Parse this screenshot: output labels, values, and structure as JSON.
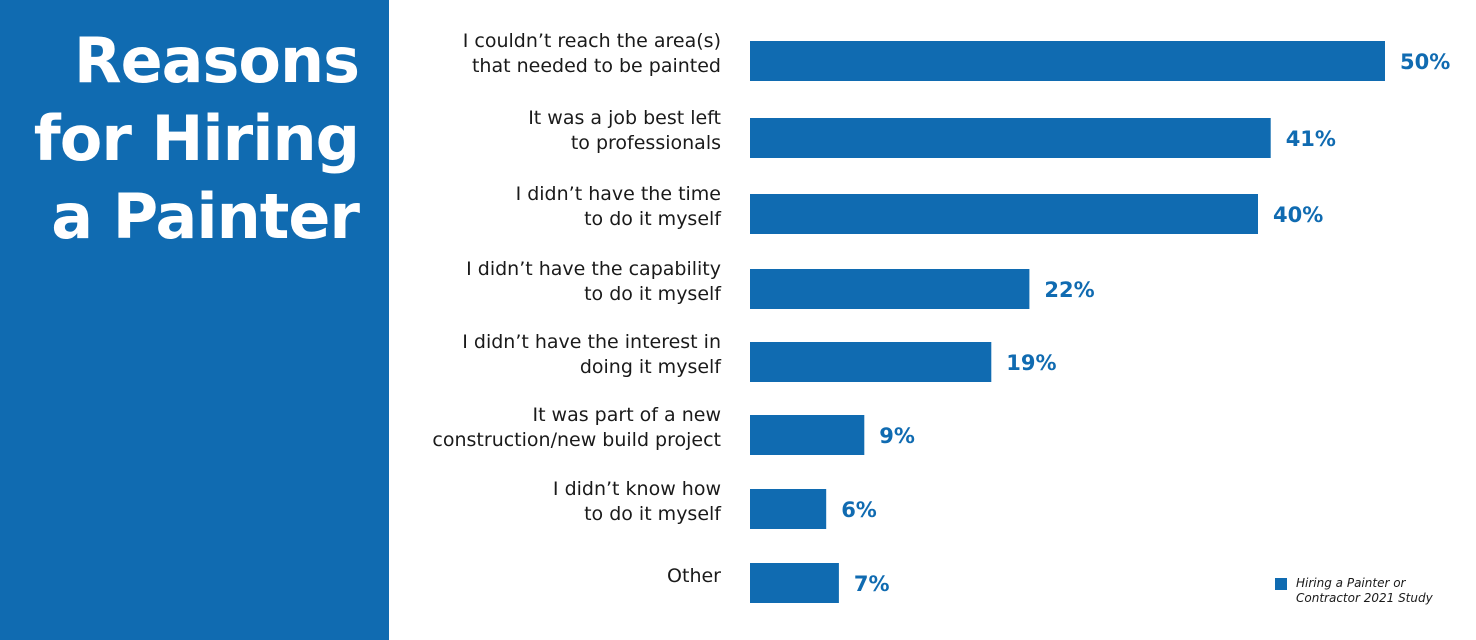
{
  "title_lines": [
    "Reasons",
    "for Hiring",
    "a Painter"
  ],
  "colors": {
    "panel": "#106bb1",
    "bar": "#106bb1",
    "value_text": "#106bb1"
  },
  "legend": {
    "lines": [
      "Hiring a Painter or",
      "Contractor 2021 Study"
    ]
  },
  "chart_data": {
    "type": "bar",
    "orientation": "horizontal",
    "categories": [
      [
        "I couldn’t reach the area(s)",
        "that needed to be painted"
      ],
      [
        "It was a job best left",
        "to professionals"
      ],
      [
        "I didn’t have the time",
        "to do it myself"
      ],
      [
        "I didn’t have the capability",
        "to do it myself"
      ],
      [
        "I didn’t have the interest in",
        "doing it myself"
      ],
      [
        "It was part of a new",
        "construction/new build project"
      ],
      [
        "I didn’t know how",
        "to do it myself"
      ],
      [
        "Other"
      ]
    ],
    "series": [
      {
        "name": "Hiring a Painter or Contractor 2021 Study",
        "values": [
          50,
          41,
          40,
          22,
          19,
          9,
          6,
          7
        ]
      }
    ],
    "value_labels": [
      "50%",
      "41%",
      "40%",
      "22%",
      "19%",
      "9%",
      "6%",
      "7%"
    ],
    "xlim": [
      0,
      50
    ],
    "grid": false,
    "legend_position": "bottom-right"
  }
}
